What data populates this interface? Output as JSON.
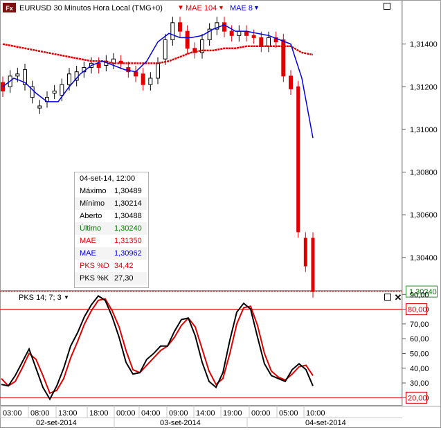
{
  "header": {
    "symbol_title": "EURUSD 30 Minutos Hora Local (TMG+0)",
    "badge": "Fx",
    "mae_slow_label": "MAE 104",
    "mae_fast_label": "MAE 8"
  },
  "subpanel": {
    "title": "PKS 14; 7; 3",
    "close_glyph": "✕"
  },
  "tooltip": {
    "date": "04-set-14, 12:00",
    "rows": [
      {
        "k": "Máximo",
        "v": "1,30489",
        "color": "#000000"
      },
      {
        "k": "Mínimo",
        "v": "1,30214",
        "color": "#000000"
      },
      {
        "k": "Aberto",
        "v": "1,30488",
        "color": "#000000"
      },
      {
        "k": "Último",
        "v": "1,30240",
        "color": "#007a00"
      },
      {
        "k": "MAE",
        "v": "1,31350",
        "color": "#e00000"
      },
      {
        "k": "MAE",
        "v": "1,30962",
        "color": "#0000e0"
      },
      {
        "k": "PKS %D",
        "v": "34,42",
        "color": "#e00000"
      },
      {
        "k": "PKS %K",
        "v": "27,30",
        "color": "#000000"
      }
    ]
  },
  "chart_data": [
    {
      "type": "candlestick",
      "y_ticks": [
        "1,31400",
        "1,31200",
        "1,31000",
        "1,30800",
        "1,30600",
        "1,30400"
      ],
      "ylim": [
        1.3025,
        1.316
      ],
      "last_price_label": "1,30240",
      "last_price": 1.3024,
      "series": [
        {
          "name": "MAE 104",
          "color": "#e00000",
          "values": [
            1.314,
            1.3139,
            1.3138,
            1.3137,
            1.3136,
            1.3135,
            1.3134,
            1.3133,
            1.3132,
            1.3132,
            1.3131,
            1.3131,
            1.3131,
            1.3131,
            1.3131,
            1.3132,
            1.3134,
            1.3136,
            1.3137,
            1.3137,
            1.3138,
            1.3138,
            1.3139,
            1.3139,
            1.3139,
            1.3139,
            1.3139,
            1.3136,
            1.3135
          ]
        },
        {
          "name": "MAE 8",
          "color": "#0000e0",
          "values": [
            1.312,
            1.3124,
            1.3122,
            1.3117,
            1.3113,
            1.3113,
            1.312,
            1.3126,
            1.313,
            1.3132,
            1.313,
            1.3128,
            1.3127,
            1.3132,
            1.3141,
            1.3145,
            1.3143,
            1.3143,
            1.3144,
            1.3147,
            1.3149,
            1.3146,
            1.3146,
            1.3145,
            1.3144,
            1.3142,
            1.314,
            1.3124,
            1.3096
          ]
        }
      ],
      "candles": [
        [
          1.3122,
          1.3118
        ],
        [
          1.312,
          1.3125
        ],
        [
          1.3125,
          1.3126
        ],
        [
          1.3121,
          1.3128
        ],
        [
          1.3115,
          1.312
        ],
        [
          1.311,
          1.3111
        ],
        [
          1.3113,
          1.3115
        ],
        [
          1.3117,
          1.3118
        ],
        [
          1.3116,
          1.3121
        ],
        [
          1.3121,
          1.3126
        ],
        [
          1.3123,
          1.3127
        ],
        [
          1.3127,
          1.3129
        ],
        [
          1.3129,
          1.3131
        ],
        [
          1.3131,
          1.3129
        ],
        [
          1.313,
          1.3132
        ],
        [
          1.3131,
          1.3133
        ],
        [
          1.3132,
          1.3131
        ],
        [
          1.3129,
          1.3127
        ],
        [
          1.3127,
          1.3125
        ],
        [
          1.3126,
          1.3121
        ],
        [
          1.3121,
          1.3124
        ],
        [
          1.3124,
          1.3131
        ],
        [
          1.3133,
          1.3142
        ],
        [
          1.3142,
          1.315
        ],
        [
          1.315,
          1.3146
        ],
        [
          1.3146,
          1.3138
        ],
        [
          1.3138,
          1.3136
        ],
        [
          1.3136,
          1.3142
        ],
        [
          1.3142,
          1.3147
        ],
        [
          1.3147,
          1.315
        ],
        [
          1.315,
          1.3146
        ],
        [
          1.3146,
          1.3144
        ],
        [
          1.3144,
          1.3146
        ],
        [
          1.3146,
          1.3144
        ],
        [
          1.3144,
          1.3143
        ],
        [
          1.3143,
          1.3139
        ],
        [
          1.3139,
          1.3143
        ],
        [
          1.3143,
          1.3141
        ],
        [
          1.3142,
          1.3125
        ],
        [
          1.3125,
          1.3119
        ],
        [
          1.312,
          1.3052
        ],
        [
          1.3049,
          1.3036
        ],
        [
          1.3049,
          1.3024
        ]
      ]
    },
    {
      "type": "line",
      "title": "PKS 14; 7; 3",
      "y_ticks": [
        "90,00",
        "80,00",
        "70,00",
        "60,00",
        "50,00",
        "40,00",
        "30,00",
        "20,00"
      ],
      "ylim": [
        15,
        92
      ],
      "levels": [
        80,
        20
      ],
      "level_labels": [
        "80,00",
        "20,00"
      ],
      "series": [
        {
          "name": "PKS %K",
          "color": "#000000",
          "values": [
            29,
            28,
            35,
            44,
            53,
            40,
            27,
            19,
            28,
            40,
            55,
            64,
            75,
            83,
            89,
            86,
            75,
            61,
            44,
            36,
            37,
            46,
            50,
            55,
            55,
            65,
            73,
            74,
            62,
            44,
            31,
            27,
            37,
            59,
            78,
            84,
            80,
            61,
            43,
            35,
            33,
            31,
            39,
            43,
            39,
            28
          ]
        },
        {
          "name": "PKS %D",
          "color": "#e00000",
          "values": [
            33,
            28,
            31,
            40,
            50,
            46,
            35,
            23,
            25,
            33,
            47,
            58,
            70,
            79,
            86,
            87,
            79,
            68,
            52,
            39,
            37,
            42,
            47,
            52,
            55,
            61,
            69,
            74,
            68,
            53,
            38,
            29,
            33,
            50,
            70,
            81,
            82,
            69,
            50,
            38,
            34,
            32,
            36,
            41,
            42,
            35
          ]
        }
      ]
    }
  ],
  "time_axis": {
    "labels": [
      "03:00",
      "08:00",
      "13:00",
      "18:00",
      "00:00",
      "04:00",
      "09:00",
      "14:00",
      "19:00",
      "00:00",
      "05:00",
      "10:00"
    ],
    "dates": [
      "02-set-2014",
      "03-set-2014",
      "04-set-2014"
    ]
  }
}
